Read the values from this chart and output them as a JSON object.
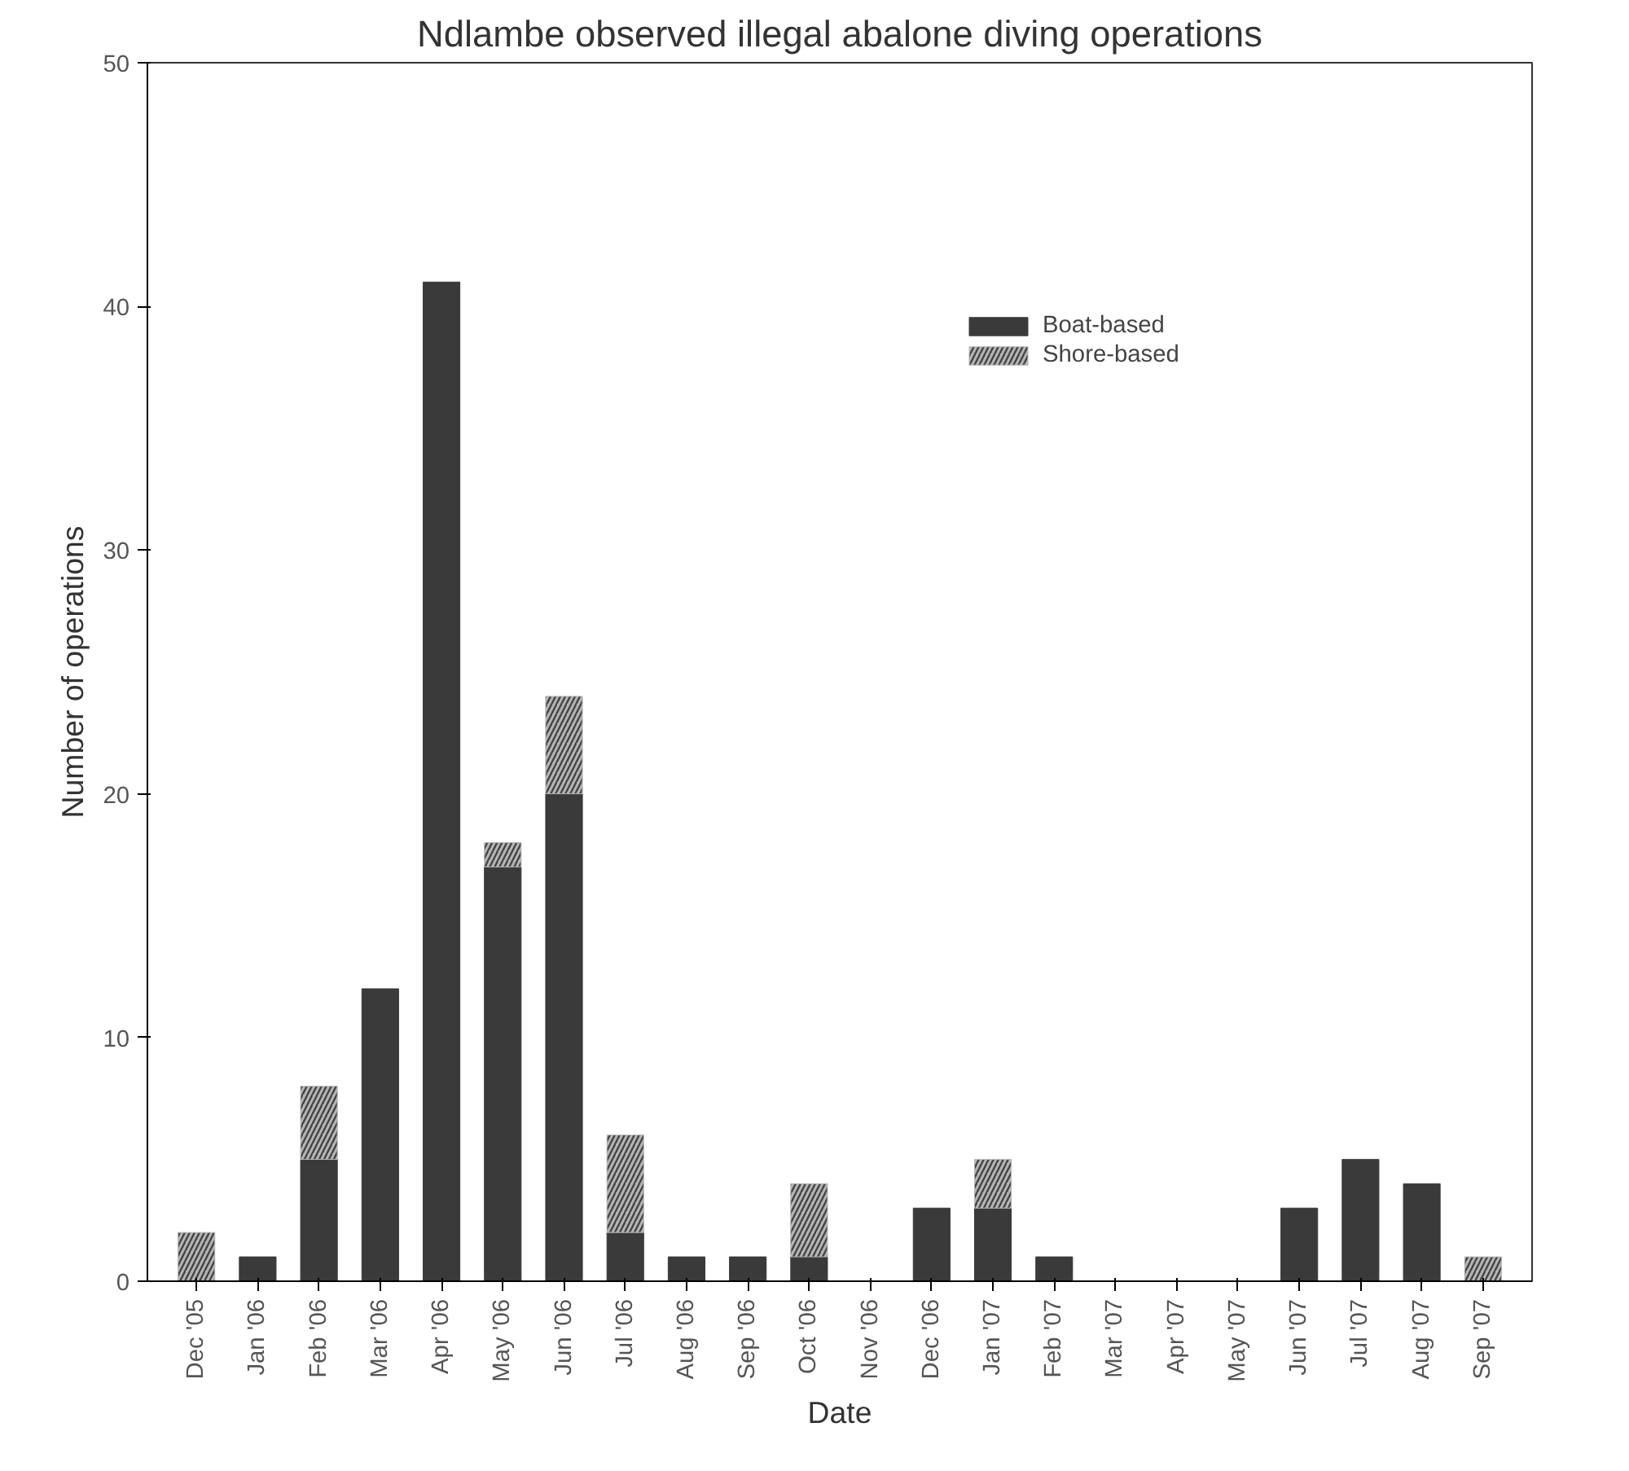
{
  "chart_data": {
    "type": "bar",
    "title": "Ndlambe observed illegal abalone diving operations",
    "xlabel": "Date",
    "ylabel": "Number of operations",
    "categories": [
      "Dec '05",
      "Jan '06",
      "Feb '06",
      "Mar '06",
      "Apr '06",
      "May '06",
      "Jun '06",
      "Jul '06",
      "Aug '06",
      "Sep '06",
      "Oct '06",
      "Nov '06",
      "Dec '06",
      "Jan '07",
      "Feb '07",
      "Mar '07",
      "Apr '07",
      "May '07",
      "Jun '07",
      "Jul '07",
      "Aug '07",
      "Sep '07"
    ],
    "stacked": true,
    "series": [
      {
        "name": "Boat-based",
        "color": "#3a3a3a",
        "values": [
          0,
          1,
          5,
          12,
          41,
          17,
          20,
          2,
          1,
          1,
          1,
          0,
          3,
          3,
          1,
          0,
          0,
          0,
          3,
          5,
          4,
          0
        ]
      },
      {
        "name": "Shore-based",
        "color": "#b5b5b5",
        "values": [
          2,
          0,
          3,
          0,
          0,
          1,
          4,
          4,
          0,
          0,
          3,
          0,
          0,
          2,
          0,
          0,
          0,
          0,
          0,
          0,
          0,
          1
        ]
      }
    ],
    "ylim": [
      0,
      50
    ],
    "yticks": [
      0,
      10,
      20,
      30,
      40,
      50
    ],
    "grid": false,
    "legend": "top right"
  }
}
